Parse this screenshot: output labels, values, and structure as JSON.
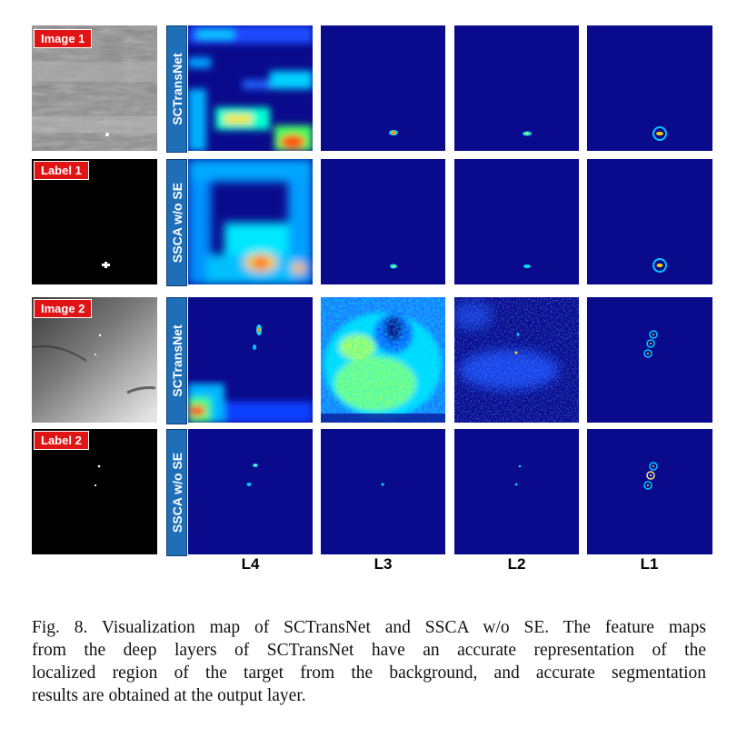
{
  "rows": [
    {
      "badge": "Image 1",
      "model": "SCTransNet"
    },
    {
      "badge": "Label 1",
      "model": "SSCA w/o SE"
    },
    {
      "badge": "Image 2",
      "model": "SCTransNet"
    },
    {
      "badge": "Label 2",
      "model": "SSCA w/o SE"
    }
  ],
  "columns": [
    "L4",
    "L3",
    "L2",
    "L1"
  ],
  "caption": {
    "line1": "Fig. 8.  Visualization map of SCTransNet and SSCA w/o SE. The feature maps",
    "line2": "from the deep layers of SCTransNet have an accurate representation of the",
    "line3": "localized region of the target from the background, and accurate segmentation",
    "line4": "results are obtained at the output layer."
  },
  "colors": {
    "badge_red": "#e01414",
    "model_label_blue": "#1f6fb8",
    "heatmap_low": "#0a0a8c",
    "heatmap_mid": "#00e0ff",
    "heatmap_high": "#ffd400"
  }
}
